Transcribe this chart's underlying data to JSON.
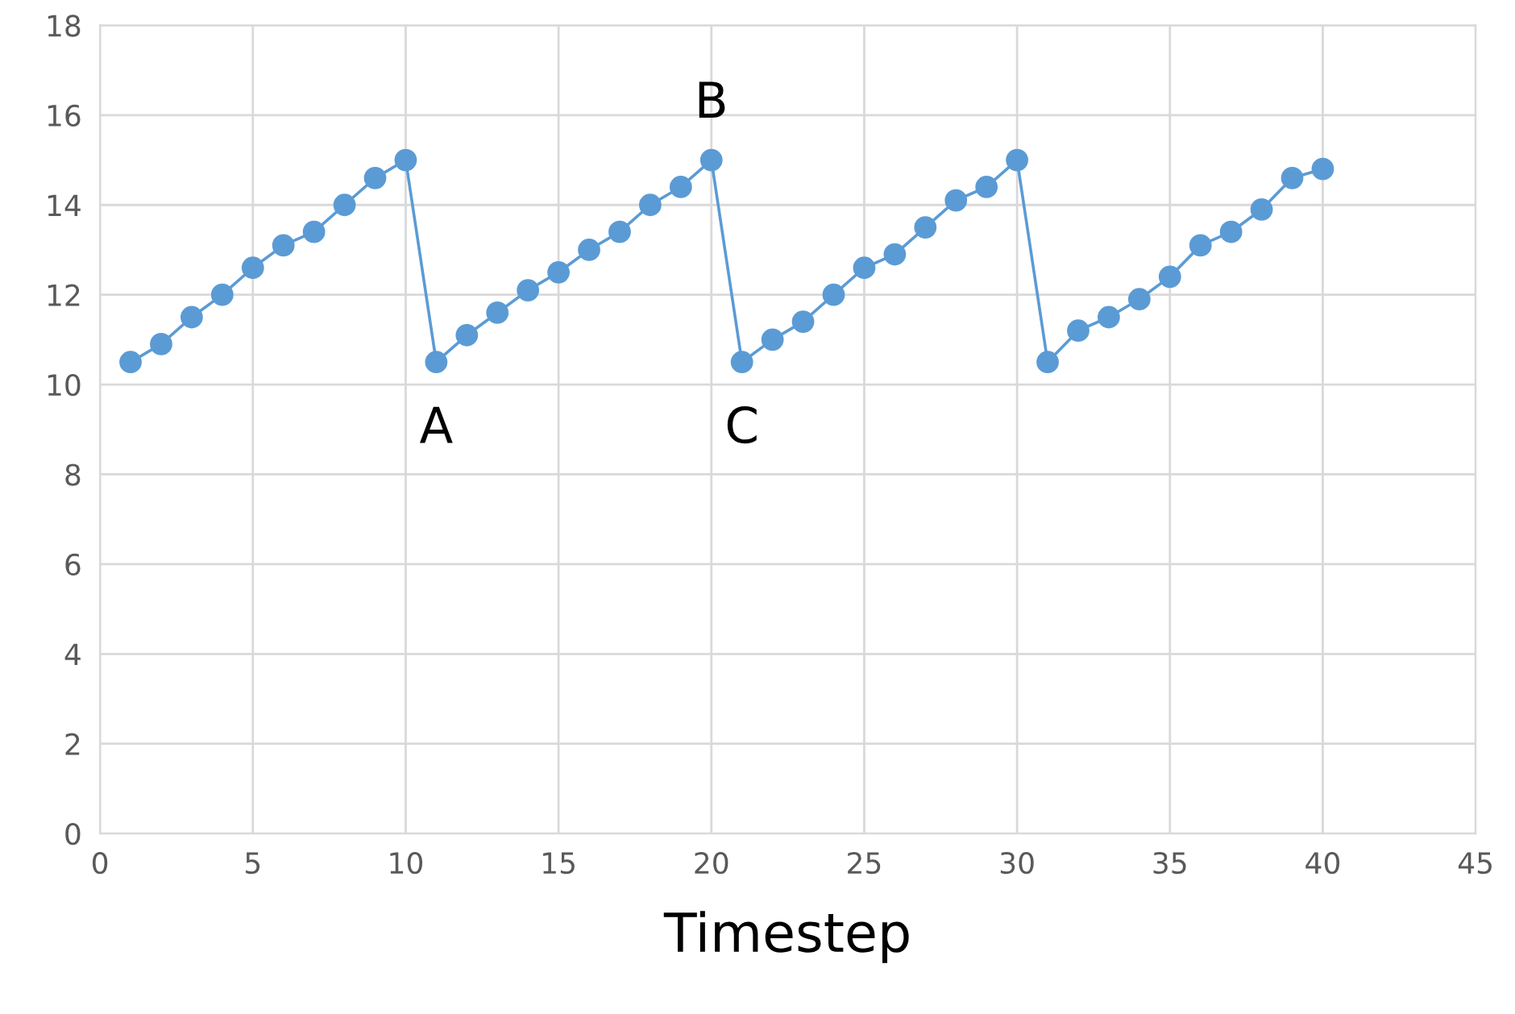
{
  "chart_data": {
    "type": "line",
    "xlabel": "Timestep",
    "x": [
      1,
      2,
      3,
      4,
      5,
      6,
      7,
      8,
      9,
      10,
      11,
      12,
      13,
      14,
      15,
      16,
      17,
      18,
      19,
      20,
      21,
      22,
      23,
      24,
      25,
      26,
      27,
      28,
      29,
      30,
      31,
      32,
      33,
      34,
      35,
      36,
      37,
      38,
      39,
      40
    ],
    "series": [
      {
        "color": "#5b9bd5",
        "values": [
          10.5,
          10.9,
          11.5,
          12.0,
          12.6,
          13.1,
          13.4,
          14.0,
          14.6,
          15.0,
          10.5,
          11.1,
          11.6,
          12.1,
          12.5,
          13.0,
          13.4,
          14.0,
          14.4,
          15.0,
          10.5,
          11.0,
          11.4,
          12.0,
          12.6,
          12.9,
          13.5,
          14.1,
          14.4,
          15.0,
          10.5,
          11.2,
          11.5,
          11.9,
          12.4,
          13.1,
          13.4,
          13.9,
          14.6,
          14.8
        ]
      }
    ],
    "xlim": [
      0,
      45
    ],
    "xticks": [
      0,
      5,
      10,
      15,
      20,
      25,
      30,
      35,
      40,
      45
    ],
    "ylim": [
      0,
      18
    ],
    "yticks": [
      0,
      2,
      4,
      6,
      8,
      10,
      12,
      14,
      16,
      18
    ],
    "grid": true,
    "marker": "circle",
    "line_style": "solid",
    "annotations": [
      {
        "text": "A",
        "x": 11,
        "y": 10.5
      },
      {
        "text": "B",
        "x": 20,
        "y": 15.0
      },
      {
        "text": "C",
        "x": 21,
        "y": 10.5
      }
    ]
  }
}
